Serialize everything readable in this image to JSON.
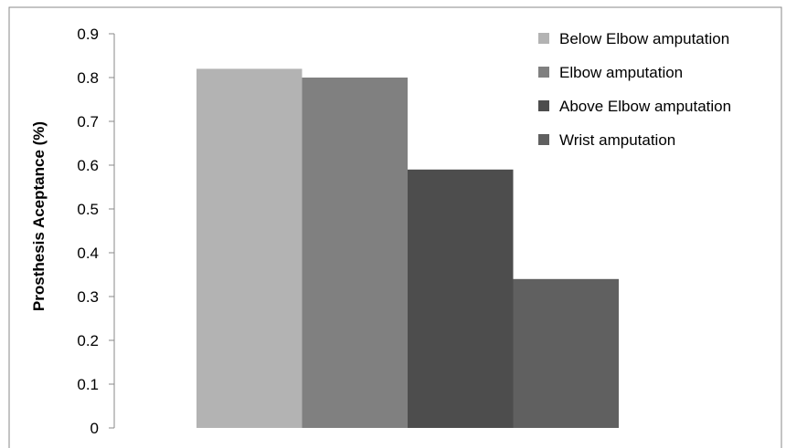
{
  "chart_data": {
    "type": "bar",
    "title": "",
    "xlabel": "",
    "ylabel": "Prosthesis Aceptance (%)",
    "ylim": [
      0,
      0.9
    ],
    "yticks": [
      "0",
      "0.1",
      "0.2",
      "0.3",
      "0.4",
      "0.5",
      "0.6",
      "0.7",
      "0.8",
      "0.9"
    ],
    "grid": false,
    "legend_position": "top-right",
    "series": [
      {
        "name": "Below Elbow amputation",
        "value": 0.82,
        "color": "#b3b3b3"
      },
      {
        "name": "Elbow amputation",
        "value": 0.8,
        "color": "#808080"
      },
      {
        "name": "Above Elbow amputation",
        "value": 0.59,
        "color": "#4d4d4d"
      },
      {
        "name": "Wrist amputation",
        "value": 0.34,
        "color": "#606060"
      }
    ]
  }
}
